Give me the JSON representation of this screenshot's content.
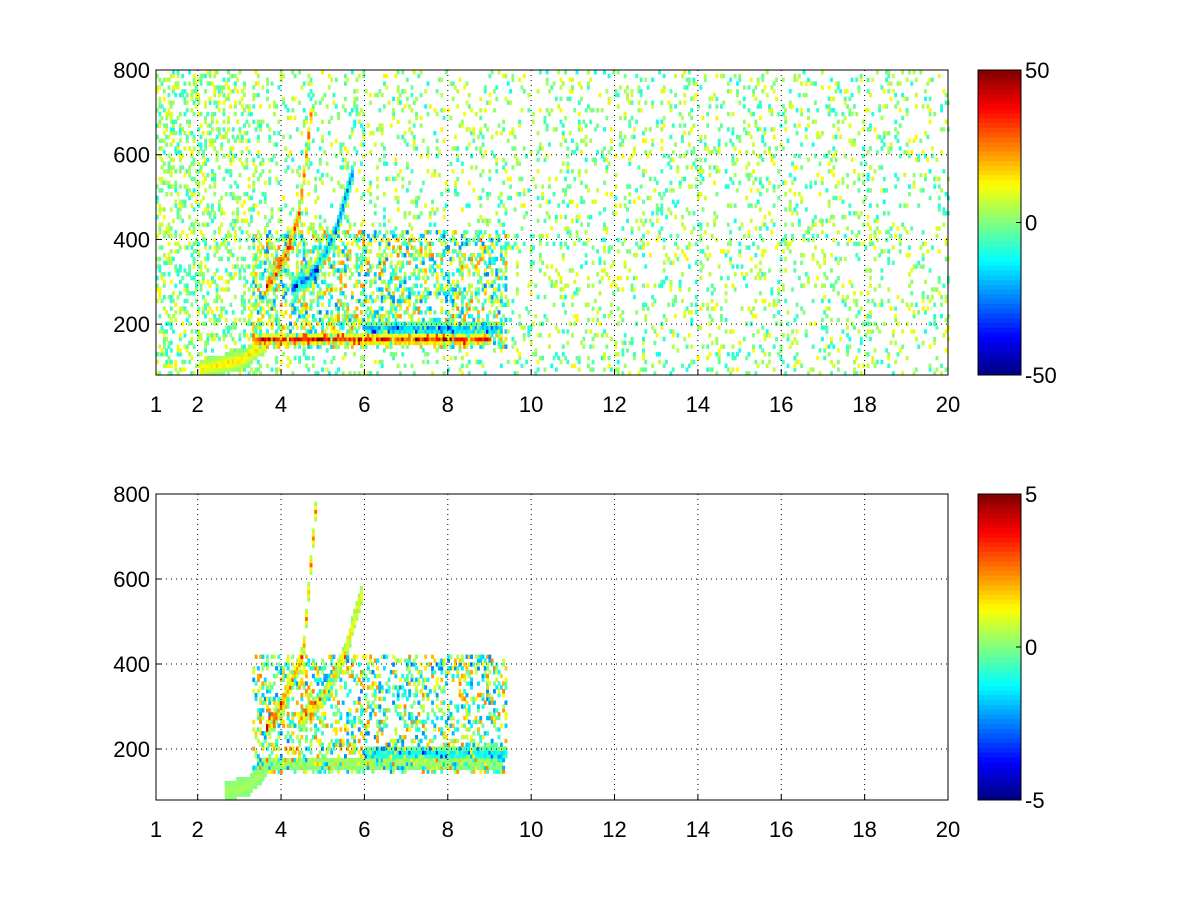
{
  "chart_data": [
    {
      "type": "heatmap",
      "title": "",
      "xlabel": "",
      "ylabel": "",
      "xlim": [
        1,
        20
      ],
      "ylim": [
        80,
        800
      ],
      "xticks": [
        1,
        2,
        4,
        6,
        8,
        10,
        12,
        14,
        16,
        18,
        20
      ],
      "yticks": [
        200,
        400,
        600,
        800
      ],
      "grid": true,
      "colormap": "jet",
      "colorbar": {
        "min": -50,
        "max": 50,
        "ticks": [
          -50,
          0,
          50
        ]
      },
      "features": [
        {
          "kind": "ridge",
          "x": [
            3.6,
            4.0,
            4.4,
            4.7
          ],
          "y": [
            280,
            340,
            450,
            700
          ],
          "value": 40
        },
        {
          "kind": "ridge",
          "x": [
            4.2,
            4.8,
            5.3,
            5.7
          ],
          "y": [
            280,
            320,
            420,
            560
          ],
          "value": -35
        },
        {
          "kind": "band",
          "x": [
            3.3,
            9.0
          ],
          "y": [
            160,
            160
          ],
          "value": 45
        },
        {
          "kind": "band",
          "x": [
            6.0,
            9.3
          ],
          "y": [
            185,
            185
          ],
          "value": -30
        },
        {
          "kind": "ridge",
          "x": [
            2.0,
            3.0,
            3.6
          ],
          "y": [
            90,
            110,
            150
          ],
          "value": 20
        }
      ]
    },
    {
      "type": "heatmap",
      "title": "",
      "xlabel": "",
      "ylabel": "",
      "xlim": [
        1,
        20
      ],
      "ylim": [
        80,
        800
      ],
      "xticks": [
        1,
        2,
        4,
        6,
        8,
        10,
        12,
        14,
        16,
        18,
        20
      ],
      "yticks": [
        200,
        400,
        600,
        800
      ],
      "grid": true,
      "colormap": "jet",
      "colorbar": {
        "min": -5,
        "max": 5,
        "ticks": [
          -5,
          0,
          5
        ]
      },
      "features": [
        {
          "kind": "ridge",
          "x": [
            3.6,
            4.0,
            4.5,
            4.8
          ],
          "y": [
            240,
            300,
            420,
            760
          ],
          "value": 3
        },
        {
          "kind": "ridge",
          "x": [
            4.4,
            5.0,
            5.5,
            5.9
          ],
          "y": [
            260,
            320,
            420,
            560
          ],
          "value": 2
        },
        {
          "kind": "band",
          "x": [
            3.4,
            9.3
          ],
          "y": [
            165,
            165
          ],
          "value": 0.5
        },
        {
          "kind": "band",
          "x": [
            6.0,
            9.4
          ],
          "y": [
            185,
            185
          ],
          "value": -2
        },
        {
          "kind": "ridge",
          "x": [
            2.6,
            3.2,
            3.6
          ],
          "y": [
            95,
            110,
            150
          ],
          "value": 0.5
        }
      ]
    }
  ]
}
